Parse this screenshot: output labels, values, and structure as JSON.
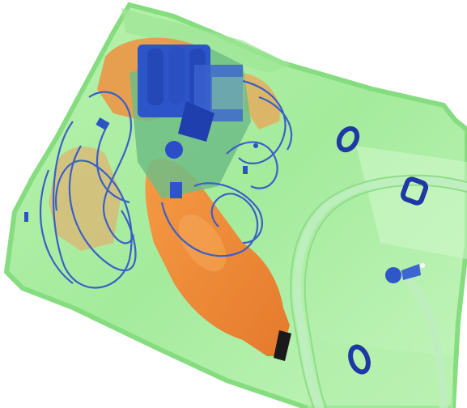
{
  "image": {
    "kind": "x-ray baggage scan",
    "background": "#ffffff",
    "colors": {
      "bag_fill": "#a7ec9e",
      "bag_edge": "#7fd97a",
      "organic": "#f08a3a",
      "organic_dark": "#d96a22",
      "metal_blue": "#2f57c8",
      "metal_dark": "#1c2f8f",
      "electronics_green": "#6fc07f",
      "wire_blue": "#3d64c9"
    },
    "objects": [
      {
        "name": "bag",
        "material": "fabric"
      },
      {
        "name": "bottle",
        "material": "organic"
      },
      {
        "name": "electronics-board",
        "material": "metal"
      },
      {
        "name": "cables",
        "material": "metal"
      },
      {
        "name": "zipper-pulls",
        "material": "metal"
      },
      {
        "name": "strap",
        "material": "fabric"
      }
    ]
  }
}
